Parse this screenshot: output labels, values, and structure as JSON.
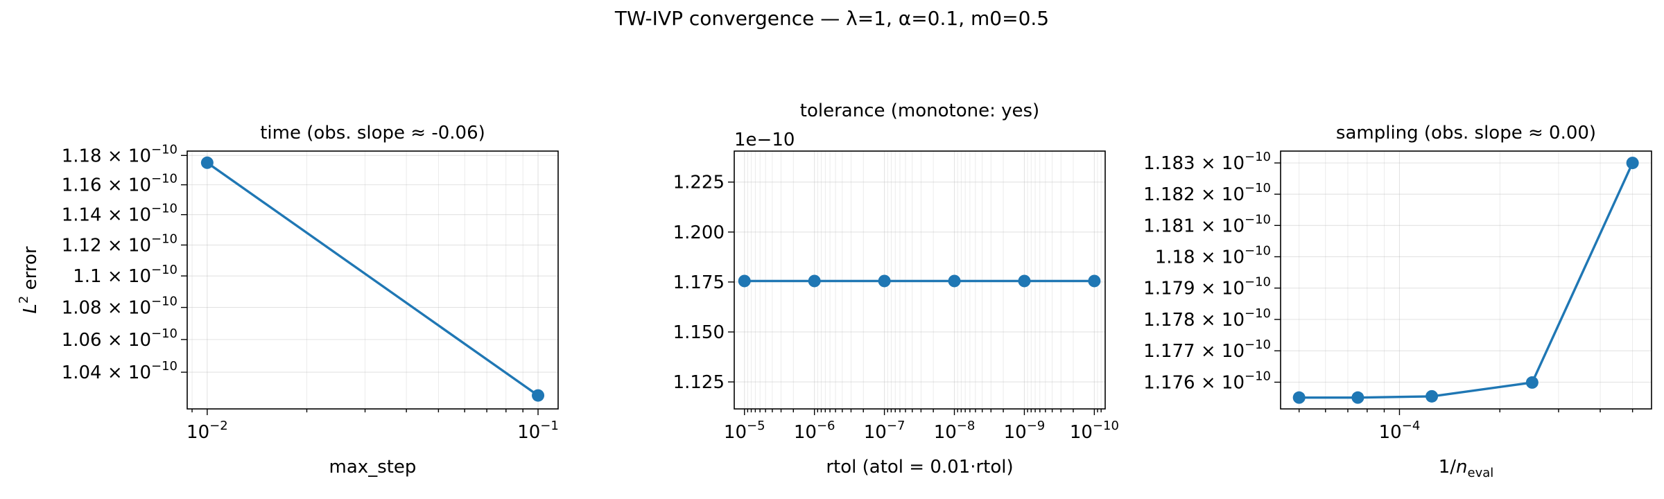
{
  "figure_title": "TW-IVP convergence — λ=1, α=0.1, m0=0.5",
  "colors": {
    "series": "#1f77b4",
    "grid": "#b0b0b0"
  },
  "chart_data": [
    {
      "type": "line",
      "title": "time (obs. slope ≈ -0.06)",
      "xlabel": "max_step",
      "ylabel": "L² error",
      "ylabel_parts": {
        "base": "L",
        "sup": "2",
        "rest": " error"
      },
      "xscale": "log",
      "yscale": "log",
      "grid": true,
      "x": [
        0.01,
        0.1
      ],
      "y": [
        1.175e-10,
        1.026e-10
      ],
      "x_ticks": [
        {
          "value": 0.01,
          "base": "10",
          "exp": "−2"
        },
        {
          "value": 0.1,
          "base": "10",
          "exp": "−1"
        }
      ],
      "y_ticks": [
        {
          "value": 1.04e-10,
          "mant": "1.04",
          "exp": "−10"
        },
        {
          "value": 1.06e-10,
          "mant": "1.06",
          "exp": "−10"
        },
        {
          "value": 1.08e-10,
          "mant": "1.08",
          "exp": "−10"
        },
        {
          "value": 1.1e-10,
          "mant": "1.1",
          "exp": "−10"
        },
        {
          "value": 1.12e-10,
          "mant": "1.12",
          "exp": "−10"
        },
        {
          "value": 1.14e-10,
          "mant": "1.14",
          "exp": "−10"
        },
        {
          "value": 1.16e-10,
          "mant": "1.16",
          "exp": "−10"
        },
        {
          "value": 1.18e-10,
          "mant": "1.18",
          "exp": "−10"
        }
      ],
      "xlim": [
        0.0087,
        0.115
      ],
      "ylim": [
        1.018e-10,
        1.183e-10
      ]
    },
    {
      "type": "line",
      "title": "tolerance (monotone: yes)",
      "xlabel": "rtol (atol = 0.01·rtol)",
      "ylabel": "",
      "y_offset_label": "1e−10",
      "xscale": "log",
      "x_inverted": true,
      "yscale": "linear",
      "grid": true,
      "x": [
        1e-05,
        1e-06,
        1e-07,
        1e-08,
        1e-09,
        1e-10
      ],
      "y": [
        1.1755,
        1.1755,
        1.1755,
        1.1755,
        1.1755,
        1.1755
      ],
      "x_ticks": [
        {
          "value": 1e-05,
          "base": "10",
          "exp": "−5"
        },
        {
          "value": 1e-06,
          "base": "10",
          "exp": "−6"
        },
        {
          "value": 1e-07,
          "base": "10",
          "exp": "−7"
        },
        {
          "value": 1e-08,
          "base": "10",
          "exp": "−8"
        },
        {
          "value": 1e-09,
          "base": "10",
          "exp": "−9"
        },
        {
          "value": 1e-10,
          "base": "10",
          "exp": "−10"
        }
      ],
      "y_ticks": [
        {
          "value": 1.125,
          "label": "1.125"
        },
        {
          "value": 1.15,
          "label": "1.150"
        },
        {
          "value": 1.175,
          "label": "1.175"
        },
        {
          "value": 1.2,
          "label": "1.200"
        },
        {
          "value": 1.225,
          "label": "1.225"
        }
      ],
      "xlim": [
        1.4e-05,
        7e-11
      ],
      "ylim": [
        1.1115,
        1.2405
      ]
    },
    {
      "type": "line",
      "title": "sampling (obs. slope ≈ 0.00)",
      "xlabel": "1/n_eval",
      "xlabel_parts": {
        "base": "1/",
        "italic": "n",
        "sub": "eval"
      },
      "ylabel": "",
      "xscale": "log",
      "yscale": "log",
      "grid": true,
      "x": [
        5e-05,
        7.5e-05,
        0.000125,
        0.00025,
        0.0005
      ],
      "y": [
        1.17551e-10,
        1.17551e-10,
        1.17555e-10,
        1.17599e-10,
        1.183e-10
      ],
      "x_ticks": [
        {
          "value": 0.0001,
          "base": "10",
          "exp": "−4"
        }
      ],
      "y_ticks": [
        {
          "value": 1.176e-10,
          "mant": "1.176",
          "exp": "−10"
        },
        {
          "value": 1.177e-10,
          "mant": "1.177",
          "exp": "−10"
        },
        {
          "value": 1.178e-10,
          "mant": "1.178",
          "exp": "−10"
        },
        {
          "value": 1.179e-10,
          "mant": "1.179",
          "exp": "−10"
        },
        {
          "value": 1.18e-10,
          "mant": "1.18",
          "exp": "−10"
        },
        {
          "value": 1.181e-10,
          "mant": "1.181",
          "exp": "−10"
        },
        {
          "value": 1.182e-10,
          "mant": "1.182",
          "exp": "−10"
        },
        {
          "value": 1.183e-10,
          "mant": "1.183",
          "exp": "−10"
        }
      ],
      "xlim": [
        4.4e-05,
        0.00057
      ],
      "ylim": [
        1.17515e-10,
        1.18338e-10
      ]
    }
  ]
}
